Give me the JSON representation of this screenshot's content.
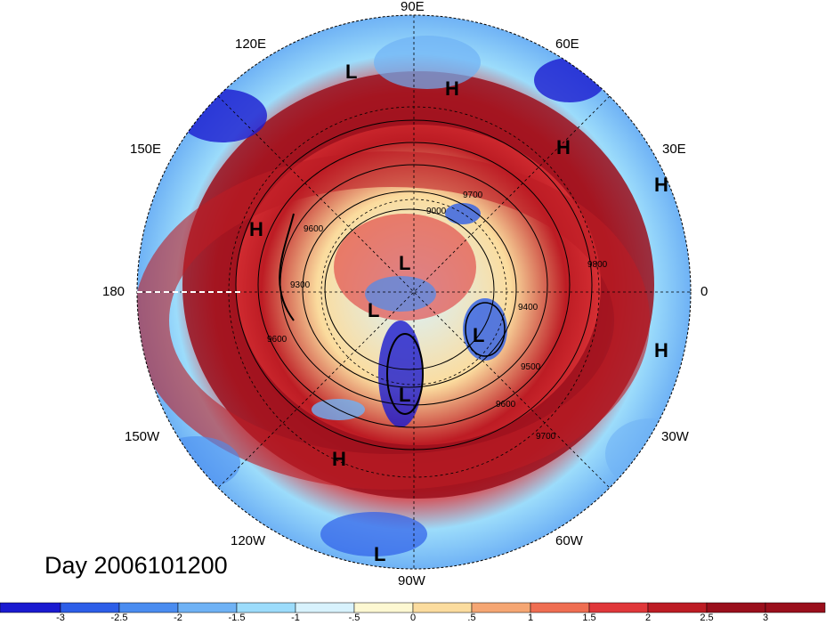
{
  "map": {
    "title": "Day 2006101200",
    "projection": "polar-stereographic-northern-hemisphere",
    "longitude_labels": [
      {
        "id": "lon-90e",
        "text": "90E"
      },
      {
        "id": "lon-120e",
        "text": "120E"
      },
      {
        "id": "lon-60e",
        "text": "60E"
      },
      {
        "id": "lon-150e",
        "text": "150E"
      },
      {
        "id": "lon-30e",
        "text": "30E"
      },
      {
        "id": "lon-180",
        "text": "180"
      },
      {
        "id": "lon-0",
        "text": "0"
      },
      {
        "id": "lon-150w",
        "text": "150W"
      },
      {
        "id": "lon-30w",
        "text": "30W"
      },
      {
        "id": "lon-120w",
        "text": "120W"
      },
      {
        "id": "lon-60w",
        "text": "60W"
      },
      {
        "id": "lon-90w",
        "text": "90W"
      }
    ],
    "pressure_centers": [
      {
        "type": "L",
        "text": "L"
      },
      {
        "type": "H",
        "text": "H"
      },
      {
        "type": "H",
        "text": "H"
      },
      {
        "type": "H",
        "text": "H"
      },
      {
        "type": "H",
        "text": "H"
      },
      {
        "type": "L",
        "text": "L"
      },
      {
        "type": "L",
        "text": "L"
      },
      {
        "type": "L",
        "text": "L"
      },
      {
        "type": "H",
        "text": "H"
      },
      {
        "type": "L",
        "text": "L"
      },
      {
        "type": "H",
        "text": "H"
      },
      {
        "type": "L",
        "text": "L"
      }
    ],
    "contour_labels": [
      "9700",
      "9600",
      "9300",
      "9000",
      "9600",
      "9400",
      "9500",
      "9600",
      "9700",
      "9800"
    ],
    "colorbar": {
      "colors": [
        "#1a1ad0",
        "#2d5ee8",
        "#4a8cf0",
        "#6fb2f5",
        "#9cdcfb",
        "#d8f2fd",
        "#fdf8d2",
        "#fbdc9e",
        "#f5a673",
        "#ef6e52",
        "#e0373a",
        "#bd1c24",
        "#9a0f1c"
      ],
      "tick_labels": [
        "-3",
        "-2.5",
        "-2",
        "-1.5",
        "-1",
        "-.5",
        "0",
        ".5",
        "1",
        "1.5",
        "2",
        "2.5",
        "3"
      ]
    }
  }
}
